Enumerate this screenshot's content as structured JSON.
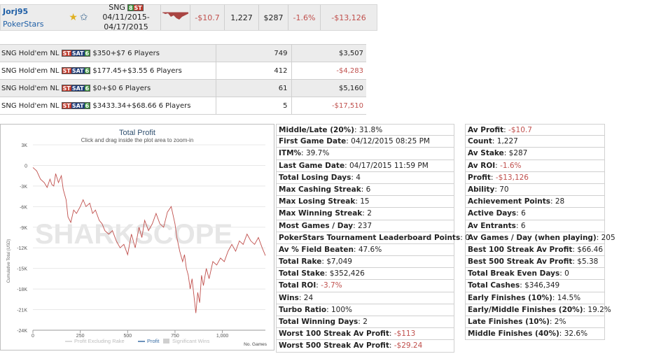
{
  "header": {
    "player_name": "Jorj95",
    "site": "PokerStars",
    "game_type": "SNG",
    "date_range_start": "04/11/2015-",
    "date_range_end": "04/17/2015",
    "av_profit": "-$10.7",
    "count": "1,227",
    "av_stake": "$287",
    "av_roi": "-1.6%",
    "profit": "-$13,126"
  },
  "games": [
    {
      "type": "SNG Hold'em NL",
      "desc": "$350+$7 6 Players",
      "count": "749",
      "profit": "$3,507",
      "negative": false
    },
    {
      "type": "SNG Hold'em NL",
      "desc": "$177.45+$3.55 6 Players",
      "count": "412",
      "profit": "-$4,283",
      "negative": true
    },
    {
      "type": "SNG Hold'em NL",
      "desc": "$0+$0 6 Players",
      "count": "61",
      "profit": "$5,160",
      "negative": false
    },
    {
      "type": "SNG Hold'em NL",
      "desc": "$3433.34+$68.66 6 Players",
      "count": "5",
      "profit": "-$17,510",
      "negative": true
    }
  ],
  "chart_data": {
    "type": "line",
    "title": "Total Profit",
    "subtitle": "Click and drag inside the plot area to zoom-in",
    "ylabel": "Cumulative Total (USD)",
    "xlabel": "No. Games",
    "ylim": [
      -24000,
      3000
    ],
    "xlim": [
      0,
      1227
    ],
    "yticks": [
      "3K",
      "0",
      "-3K",
      "-6K",
      "-9K",
      "-12K",
      "-15K",
      "-18K",
      "-21K",
      "-24K"
    ],
    "xticks": [
      "0",
      "250",
      "500",
      "750",
      "1,000"
    ],
    "legend": [
      "Profit Excluding Rake",
      "Profit",
      "Significant Wins"
    ],
    "watermark": "SHARKSCOPE",
    "series": [
      {
        "name": "Profit",
        "color": "#c0504d",
        "x": [
          0,
          20,
          40,
          60,
          75,
          90,
          100,
          110,
          120,
          135,
          150,
          160,
          175,
          185,
          200,
          215,
          230,
          250,
          265,
          280,
          300,
          315,
          330,
          350,
          365,
          380,
          400,
          420,
          440,
          460,
          480,
          500,
          520,
          540,
          560,
          575,
          590,
          610,
          630,
          650,
          670,
          690,
          710,
          730,
          750,
          760,
          775,
          790,
          800,
          810,
          820,
          830,
          840,
          850,
          860,
          870,
          880,
          890,
          900,
          915,
          930,
          950,
          970,
          990,
          1010,
          1030,
          1050,
          1070,
          1090,
          1110,
          1130,
          1150,
          1170,
          1190,
          1210,
          1227
        ],
        "y": [
          -300,
          -800,
          -2000,
          -2500,
          -3200,
          -2000,
          -2800,
          -3000,
          -1200,
          -2500,
          -1500,
          -3500,
          -5000,
          -7500,
          -8300,
          -6500,
          -7000,
          -6000,
          -5000,
          -6000,
          -5500,
          -7000,
          -6500,
          -8000,
          -8500,
          -9500,
          -10000,
          -9500,
          -11000,
          -12000,
          -11500,
          -13000,
          -10000,
          -12000,
          -9000,
          -10500,
          -8000,
          -9500,
          -8500,
          -7000,
          -8500,
          -9000,
          -6800,
          -6000,
          -8500,
          -10500,
          -12500,
          -14000,
          -13000,
          -15000,
          -16000,
          -18000,
          -16500,
          -19000,
          -21500,
          -18500,
          -20000,
          -16000,
          -17500,
          -15000,
          -16500,
          -14000,
          -14500,
          -13500,
          -14000,
          -12500,
          -11500,
          -12500,
          -11000,
          -11500,
          -10000,
          -11000,
          -11500,
          -10500,
          -12000,
          -13126
        ]
      }
    ]
  },
  "stats_mid": [
    {
      "label": "Middle/Late (20%)",
      "value": "31.8%",
      "negative": false
    },
    {
      "label": "First Game Date",
      "value": "04/12/2015 08:25 PM",
      "negative": false
    },
    {
      "label": "ITM%",
      "value": "39.7%",
      "negative": false
    },
    {
      "label": "Last Game Date",
      "value": "04/17/2015 11:59 PM",
      "negative": false
    },
    {
      "label": "Total Losing Days",
      "value": "4",
      "negative": false
    },
    {
      "label": "Max Cashing Streak",
      "value": "6",
      "negative": false
    },
    {
      "label": "Max Losing Streak",
      "value": "15",
      "negative": false
    },
    {
      "label": "Max Winning Streak",
      "value": "2",
      "negative": false
    },
    {
      "label": "Most Games / Day",
      "value": "237",
      "negative": false
    },
    {
      "label": "PokerStars Tournament Leaderboard Points",
      "value": "0",
      "negative": false
    },
    {
      "label": "Av % Field Beaten",
      "value": "47.6%",
      "negative": false
    },
    {
      "label": "Total Rake",
      "value": "$7,049",
      "negative": false
    },
    {
      "label": "Total Stake",
      "value": "$352,426",
      "negative": false
    },
    {
      "label": "Total ROI",
      "value": "-3.7%",
      "negative": true
    },
    {
      "label": "Wins",
      "value": "24",
      "negative": false
    },
    {
      "label": "Turbo Ratio",
      "value": "100%",
      "negative": false
    },
    {
      "label": "Total Winning Days",
      "value": "2",
      "negative": false
    },
    {
      "label": "Worst 100 Streak Av Profit",
      "value": "-$113",
      "negative": true
    },
    {
      "label": "Worst 500 Streak Av Profit",
      "value": "-$29.24",
      "negative": true
    }
  ],
  "stats_right": [
    {
      "label": "Av Profit",
      "value": "-$10.7",
      "negative": true
    },
    {
      "label": "Count",
      "value": "1,227",
      "negative": false
    },
    {
      "label": "Av Stake",
      "value": "$287",
      "negative": false
    },
    {
      "label": "Av ROI",
      "value": "-1.6%",
      "negative": true
    },
    {
      "label": "Profit",
      "value": "-$13,126",
      "negative": true
    },
    {
      "label": "Ability",
      "value": "70",
      "negative": false
    },
    {
      "label": "Achievement Points",
      "value": "28",
      "negative": false
    },
    {
      "label": "Active Days",
      "value": "6",
      "negative": false
    },
    {
      "label": "Av Entrants",
      "value": "6",
      "negative": false
    },
    {
      "label": "Av Games / Day (when playing)",
      "value": "205",
      "negative": false
    },
    {
      "label": "Best 100 Streak Av Profit",
      "value": "$66.46",
      "negative": false
    },
    {
      "label": "Best 500 Streak Av Profit",
      "value": "$5.38",
      "negative": false
    },
    {
      "label": "Total Break Even Days",
      "value": "0",
      "negative": false
    },
    {
      "label": "Total Cashes",
      "value": "$346,349",
      "negative": false
    },
    {
      "label": "Early Finishes (10%)",
      "value": "14.5%",
      "negative": false
    },
    {
      "label": "Early/Middle Finishes (20%)",
      "value": "19.2%",
      "negative": false
    },
    {
      "label": "Late Finishes (10%)",
      "value": "2%",
      "negative": false
    },
    {
      "label": "Middle Finishes (40%)",
      "value": "32.6%",
      "negative": false
    }
  ]
}
